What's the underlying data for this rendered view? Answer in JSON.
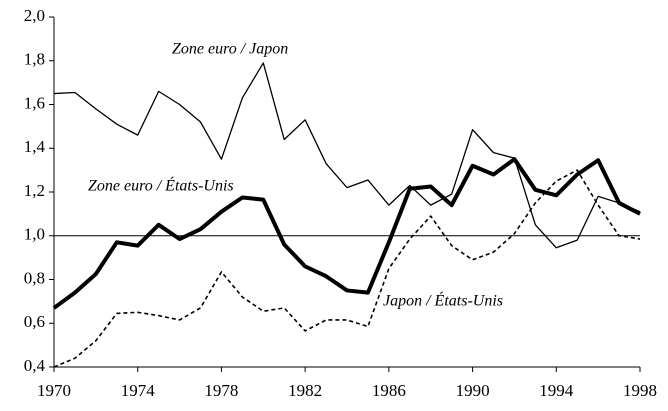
{
  "chart_data": {
    "type": "line",
    "x": [
      1970,
      1971,
      1972,
      1973,
      1974,
      1975,
      1976,
      1977,
      1978,
      1979,
      1980,
      1981,
      1982,
      1983,
      1984,
      1985,
      1986,
      1987,
      1988,
      1989,
      1990,
      1991,
      1992,
      1993,
      1994,
      1995,
      1996,
      1997,
      1998
    ],
    "series": [
      {
        "name": "Zone euro / Japon",
        "color": "#000000",
        "line_style": "thin",
        "values": [
          1.65,
          1.655,
          1.58,
          1.51,
          1.46,
          1.66,
          1.6,
          1.52,
          1.35,
          1.63,
          1.79,
          1.44,
          1.53,
          1.33,
          1.22,
          1.255,
          1.14,
          1.23,
          1.14,
          1.19,
          1.485,
          1.38,
          1.355,
          1.05,
          0.945,
          0.98,
          1.18,
          1.15,
          1.11
        ]
      },
      {
        "name": "Zone euro / États-Unis",
        "color": "#000000",
        "line_style": "thick",
        "values": [
          0.67,
          0.74,
          0.825,
          0.97,
          0.955,
          1.05,
          0.985,
          1.03,
          1.11,
          1.175,
          1.165,
          0.96,
          0.86,
          0.815,
          0.75,
          0.74,
          0.97,
          1.215,
          1.225,
          1.14,
          1.32,
          1.28,
          1.35,
          1.21,
          1.185,
          1.28,
          1.345,
          1.15,
          1.1
        ]
      },
      {
        "name": "Japon / États-Unis",
        "color": "#000000",
        "line_style": "dashed",
        "values": [
          0.4,
          0.44,
          0.52,
          0.645,
          0.65,
          0.635,
          0.615,
          0.67,
          0.835,
          0.72,
          0.655,
          0.67,
          0.565,
          0.615,
          0.615,
          0.585,
          0.85,
          0.985,
          1.09,
          0.955,
          0.89,
          0.925,
          1.01,
          1.15,
          1.25,
          1.3,
          1.14,
          1.0,
          0.985
        ]
      }
    ],
    "xlim": [
      1970,
      1998
    ],
    "xticks": [
      1970,
      1974,
      1978,
      1982,
      1986,
      1990,
      1994,
      1998
    ],
    "ylim": [
      0.4,
      2.0
    ],
    "yticks": [
      {
        "value": 0.4,
        "label": "0,4"
      },
      {
        "value": 0.6,
        "label": "0,6"
      },
      {
        "value": 0.8,
        "label": "0,8"
      },
      {
        "value": 1.0,
        "label": "1,0"
      },
      {
        "value": 1.2,
        "label": "1,2"
      },
      {
        "value": 1.4,
        "label": "1,4"
      },
      {
        "value": 1.6,
        "label": "1,6"
      },
      {
        "value": 1.8,
        "label": "1,8"
      },
      {
        "value": 2.0,
        "label": "2,0"
      }
    ],
    "reference_line": 1.0,
    "grid": false,
    "legend": false
  }
}
